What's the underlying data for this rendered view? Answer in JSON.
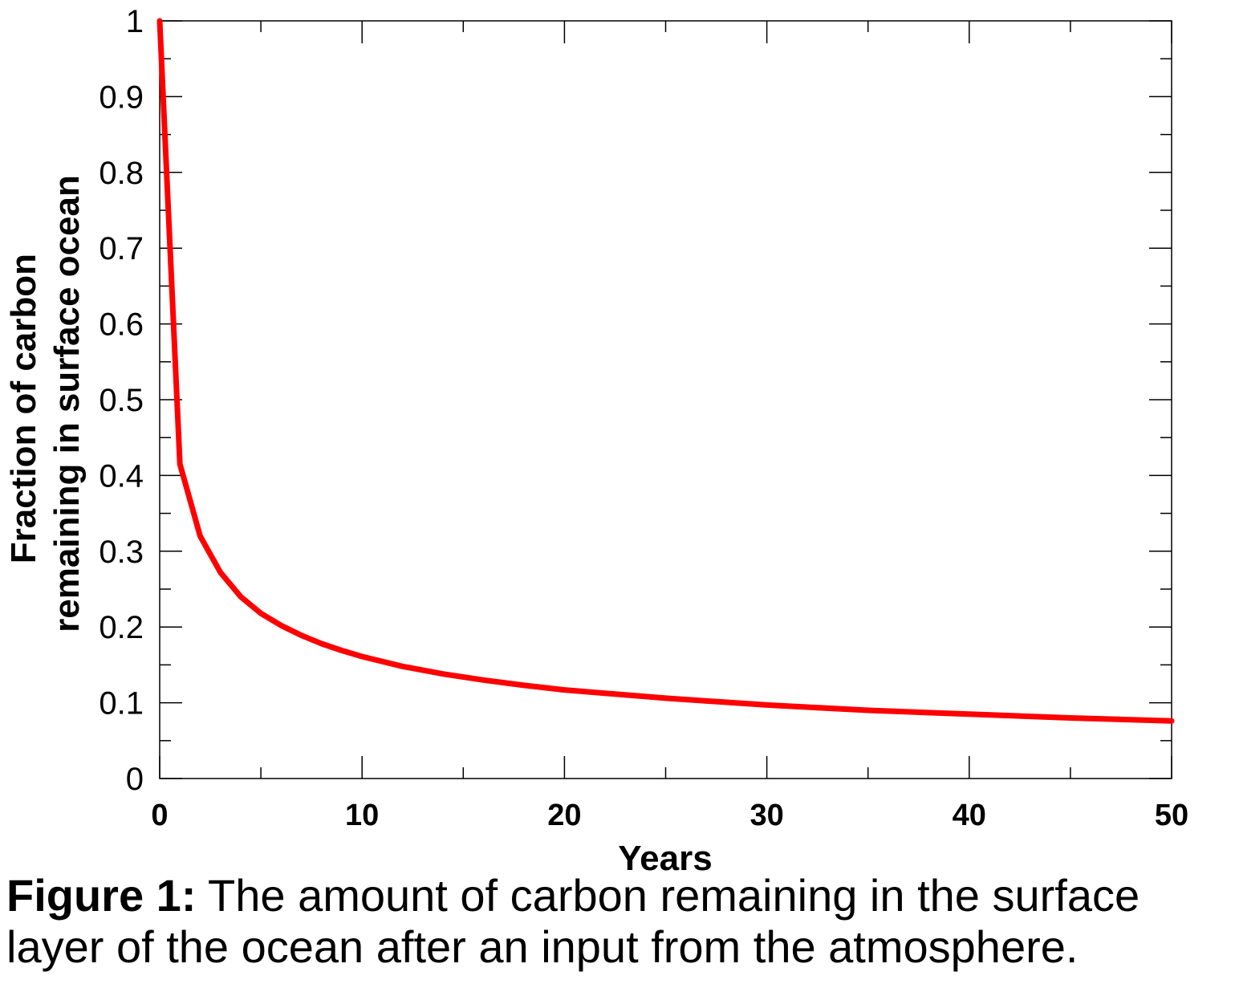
{
  "chart_data": {
    "type": "line",
    "xlabel": "Years",
    "ylabel_lines": [
      "Fraction of carbon",
      "remaining in surface ocean"
    ],
    "xlim": [
      0,
      50
    ],
    "ylim": [
      0,
      1
    ],
    "x_ticks": [
      0,
      10,
      20,
      30,
      40,
      50
    ],
    "y_ticks": [
      0,
      0.1,
      0.2,
      0.3,
      0.4,
      0.5,
      0.6,
      0.7,
      0.8,
      0.9,
      1
    ],
    "x_tick_labels": [
      "0",
      "10",
      "20",
      "30",
      "40",
      "50"
    ],
    "y_tick_labels": [
      "0",
      "0.1",
      "0.2",
      "0.3",
      "0.4",
      "0.5",
      "0.6",
      "0.7",
      "0.8",
      "0.9",
      "1"
    ],
    "grid": false,
    "series": [
      {
        "color": "#ff0000",
        "x": [
          0,
          1,
          2,
          3,
          4,
          5,
          6,
          7,
          8,
          9,
          10,
          12,
          14,
          16,
          18,
          20,
          25,
          30,
          35,
          40,
          45,
          50
        ],
        "y": [
          1.0,
          0.415,
          0.32,
          0.272,
          0.24,
          0.218,
          0.202,
          0.189,
          0.178,
          0.169,
          0.161,
          0.148,
          0.138,
          0.13,
          0.123,
          0.117,
          0.106,
          0.097,
          0.09,
          0.085,
          0.08,
          0.076
        ]
      }
    ]
  },
  "caption": {
    "label": "Figure 1:",
    "text": " The amount of carbon remaining in the surface layer of the ocean after an input from the atmosphere."
  }
}
